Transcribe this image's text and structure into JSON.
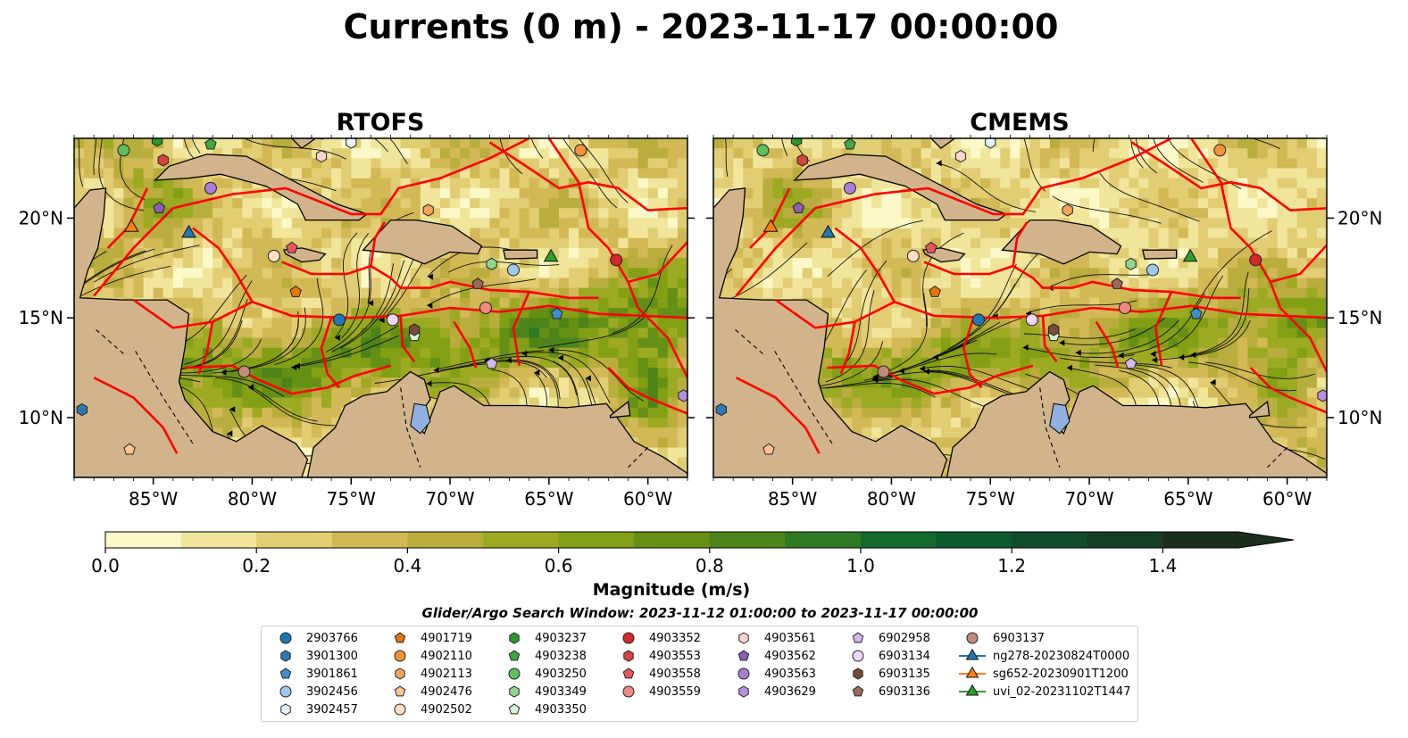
{
  "figure": {
    "title": "Currents (0 m) - 2023-11-17 00:00:00"
  },
  "chart_data": {
    "type": "heatmap",
    "panels": [
      {
        "title": "RTOFS"
      },
      {
        "title": "CMEMS"
      }
    ],
    "lon_ticks": [
      "85°W",
      "80°W",
      "75°W",
      "70°W",
      "65°W",
      "60°W"
    ],
    "lon_tick_values": [
      -85,
      -80,
      -75,
      -70,
      -65,
      -60
    ],
    "lat_ticks": [
      "20°N",
      "15°N",
      "10°N"
    ],
    "lat_tick_values": [
      20,
      15,
      10
    ],
    "xlim": [
      -89,
      -58
    ],
    "ylim": [
      7,
      24
    ],
    "land_color": "#d2b48c",
    "eez_color": "#ff0000",
    "colorbar": {
      "label": "Magnitude (m/s)",
      "ticks": [
        "0.0",
        "0.2",
        "0.4",
        "0.6",
        "0.8",
        "1.0",
        "1.2",
        "1.4"
      ],
      "tick_values": [
        0,
        0.2,
        0.4,
        0.6,
        0.8,
        1.0,
        1.2,
        1.4
      ],
      "range": [
        0,
        1.5
      ],
      "extend": "max",
      "colors": [
        "#fdf8c8",
        "#f1e59a",
        "#e1cd72",
        "#d1b956",
        "#b9ad3e",
        "#9caa22",
        "#839f14",
        "#649016",
        "#4c8419",
        "#2e7a23",
        "#126b2c",
        "#0c5b2d",
        "#104c2a",
        "#163d25",
        "#192e1d"
      ]
    },
    "search_window": "Glider/Argo Search Window: 2023-11-12 01:00:00 to 2023-11-17 00:00:00",
    "legend": [
      {
        "label": "2903766",
        "marker": "circle",
        "color": "#1f77b4"
      },
      {
        "label": "3901300",
        "marker": "hexagon",
        "color": "#2b78b2"
      },
      {
        "label": "3901861",
        "marker": "pentagon",
        "color": "#3f8fcf"
      },
      {
        "label": "3902456",
        "marker": "circle",
        "color": "#9ec9ef"
      },
      {
        "label": "3902457",
        "marker": "hexagon",
        "color": "#e8f2fc"
      },
      {
        "label": "4901719",
        "marker": "pentagon",
        "color": "#e6750a"
      },
      {
        "label": "4902110",
        "marker": "circle",
        "color": "#f5923a"
      },
      {
        "label": "4902113",
        "marker": "hexagon",
        "color": "#f7a35a"
      },
      {
        "label": "4902476",
        "marker": "pentagon",
        "color": "#fbc391"
      },
      {
        "label": "4902502",
        "marker": "circle",
        "color": "#fde0c4"
      },
      {
        "label": "4903237",
        "marker": "hexagon",
        "color": "#2a9a2a"
      },
      {
        "label": "4903238",
        "marker": "pentagon",
        "color": "#40a840"
      },
      {
        "label": "4903250",
        "marker": "circle",
        "color": "#5cc15c"
      },
      {
        "label": "4903349",
        "marker": "hexagon",
        "color": "#90d890"
      },
      {
        "label": "4903350",
        "marker": "pentagon",
        "color": "#d4f5d4"
      },
      {
        "label": "4903352",
        "marker": "circle",
        "color": "#d62728"
      },
      {
        "label": "4903553",
        "marker": "hexagon",
        "color": "#d9403f"
      },
      {
        "label": "4903558",
        "marker": "pentagon",
        "color": "#e8575a"
      },
      {
        "label": "4903559",
        "marker": "circle",
        "color": "#f08a80"
      },
      {
        "label": "4903561",
        "marker": "hexagon",
        "color": "#fbd5d1"
      },
      {
        "label": "4903562",
        "marker": "pentagon",
        "color": "#8a5fb5"
      },
      {
        "label": "4903563",
        "marker": "circle",
        "color": "#a97fd6"
      },
      {
        "label": "4903629",
        "marker": "hexagon",
        "color": "#b891e0"
      },
      {
        "label": "6902958",
        "marker": "pentagon",
        "color": "#d3b8ee"
      },
      {
        "label": "6903134",
        "marker": "circle",
        "color": "#ecd8f8"
      },
      {
        "label": "6903135",
        "marker": "hexagon",
        "color": "#7a4a3a"
      },
      {
        "label": "6903136",
        "marker": "pentagon",
        "color": "#9a6a58"
      },
      {
        "label": "6903137",
        "marker": "circle",
        "color": "#c28a78"
      },
      {
        "label": "ng278-20230824T0000",
        "marker": "triangle-line",
        "color": "#1f77b4"
      },
      {
        "label": "sg652-20230901T1200",
        "marker": "triangle-line",
        "color": "#ff7f0e"
      },
      {
        "label": "uvi_02-20231102T1447",
        "marker": "triangle-line",
        "color": "#2ca02c"
      }
    ],
    "floats": [
      {
        "id": "2903766",
        "lon": -75.6,
        "lat": 14.9
      },
      {
        "id": "3901300",
        "lon": -88.6,
        "lat": 10.4
      },
      {
        "id": "3901861",
        "lon": -64.6,
        "lat": 15.2
      },
      {
        "id": "3902456",
        "lon": -66.8,
        "lat": 17.4
      },
      {
        "id": "3902457",
        "lon": -75.0,
        "lat": 23.8
      },
      {
        "id": "4901719",
        "lon": -77.8,
        "lat": 16.3
      },
      {
        "id": "4902110",
        "lon": -63.4,
        "lat": 23.4
      },
      {
        "id": "4902113",
        "lon": -71.1,
        "lat": 20.4
      },
      {
        "id": "4902476",
        "lon": -86.2,
        "lat": 8.4
      },
      {
        "id": "4902502",
        "lon": -78.9,
        "lat": 18.1
      },
      {
        "id": "4903237",
        "lon": -84.8,
        "lat": 23.9
      },
      {
        "id": "4903238",
        "lon": -82.1,
        "lat": 23.7
      },
      {
        "id": "4903250",
        "lon": -86.5,
        "lat": 23.4
      },
      {
        "id": "4903349",
        "lon": -67.9,
        "lat": 17.7
      },
      {
        "id": "4903350",
        "lon": -71.8,
        "lat": 14.1
      },
      {
        "id": "4903352",
        "lon": -61.6,
        "lat": 17.9
      },
      {
        "id": "4903553",
        "lon": -84.5,
        "lat": 22.9
      },
      {
        "id": "4903558",
        "lon": -78.0,
        "lat": 18.5
      },
      {
        "id": "4903559",
        "lon": -68.2,
        "lat": 15.5
      },
      {
        "id": "4903561",
        "lon": -76.5,
        "lat": 23.1
      },
      {
        "id": "4903562",
        "lon": -84.7,
        "lat": 20.5
      },
      {
        "id": "4903563",
        "lon": -82.1,
        "lat": 21.5
      },
      {
        "id": "4903629",
        "lon": -58.2,
        "lat": 11.1
      },
      {
        "id": "6902958",
        "lon": -67.9,
        "lat": 12.7
      },
      {
        "id": "6903134",
        "lon": -72.9,
        "lat": 14.9
      },
      {
        "id": "6903135",
        "lon": -71.8,
        "lat": 14.4
      },
      {
        "id": "6903136",
        "lon": -68.6,
        "lat": 16.7
      },
      {
        "id": "6903137",
        "lon": -80.4,
        "lat": 12.3
      }
    ],
    "gliders": [
      {
        "id": "ng278-20230824T0000",
        "lon": -83.2,
        "lat": 19.3
      },
      {
        "id": "sg652-20230901T1200",
        "lon": -86.1,
        "lat": 19.6
      },
      {
        "id": "uvi_02-20231102T1447",
        "lon": -64.9,
        "lat": 18.1
      }
    ]
  }
}
